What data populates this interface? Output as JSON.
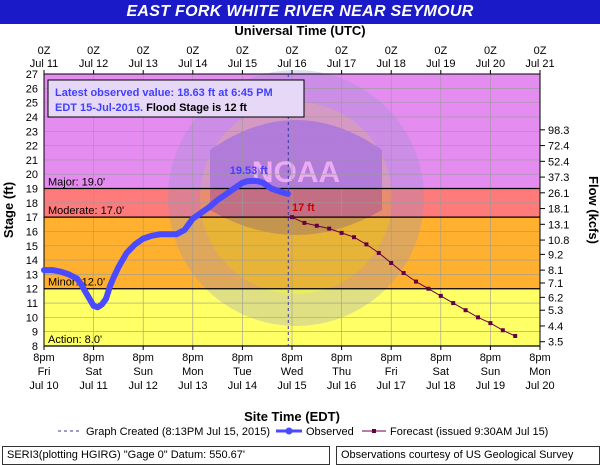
{
  "title": "EAST FORK WHITE RIVER NEAR SEYMOUR",
  "colors": {
    "title_bg": "#1a1ac8",
    "zone_major": "#e48cf0",
    "zone_moderate": "#ff7a7a",
    "zone_minor": "#ffb02e",
    "zone_action": "#ffff66",
    "zone_normal": "#ffffff",
    "observed": "#4a4aff",
    "forecast": "#660044",
    "annotation": "#4040ff"
  },
  "chart_data": {
    "type": "line",
    "title": "EAST FORK WHITE RIVER NEAR SEYMOUR",
    "top_axis_label": "Universal Time (UTC)",
    "xlabel": "Site Time (EDT)",
    "ylabel": "Stage (ft)",
    "y2label": "Flow (kcfs)",
    "ylim": [
      8,
      27
    ],
    "xlim": [
      0,
      240
    ],
    "x_unit": "hours after 8pm EDT Fri Jul 10, 2015",
    "yticks": [
      8,
      9,
      10,
      11,
      12,
      13,
      14,
      15,
      16,
      17,
      18,
      19,
      20,
      21,
      22,
      23,
      24,
      25,
      26,
      27
    ],
    "bottom_ticks": [
      {
        "x": 0,
        "time": "8pm",
        "day": "Fri",
        "date": "Jul 10"
      },
      {
        "x": 24,
        "time": "8pm",
        "day": "Sat",
        "date": "Jul 11"
      },
      {
        "x": 48,
        "time": "8pm",
        "day": "Sun",
        "date": "Jul 12"
      },
      {
        "x": 72,
        "time": "8pm",
        "day": "Mon",
        "date": "Jul 13"
      },
      {
        "x": 96,
        "time": "8pm",
        "day": "Tue",
        "date": "Jul 14"
      },
      {
        "x": 120,
        "time": "8pm",
        "day": "Wed",
        "date": "Jul 15"
      },
      {
        "x": 144,
        "time": "8pm",
        "day": "Thu",
        "date": "Jul 16"
      },
      {
        "x": 168,
        "time": "8pm",
        "day": "Fri",
        "date": "Jul 17"
      },
      {
        "x": 192,
        "time": "8pm",
        "day": "Sat",
        "date": "Jul 18"
      },
      {
        "x": 216,
        "time": "8pm",
        "day": "Sun",
        "date": "Jul 19"
      },
      {
        "x": 240,
        "time": "8pm",
        "day": "Mon",
        "date": "Jul 20"
      }
    ],
    "top_ticks": [
      {
        "x": 0,
        "time": "0Z",
        "date": "Jul 11"
      },
      {
        "x": 24,
        "time": "0Z",
        "date": "Jul 12"
      },
      {
        "x": 48,
        "time": "0Z",
        "date": "Jul 13"
      },
      {
        "x": 72,
        "time": "0Z",
        "date": "Jul 14"
      },
      {
        "x": 96,
        "time": "0Z",
        "date": "Jul 15"
      },
      {
        "x": 120,
        "time": "0Z",
        "date": "Jul 16"
      },
      {
        "x": 144,
        "time": "0Z",
        "date": "Jul 17"
      },
      {
        "x": 168,
        "time": "0Z",
        "date": "Jul 18"
      },
      {
        "x": 192,
        "time": "0Z",
        "date": "Jul 19"
      },
      {
        "x": 216,
        "time": "0Z",
        "date": "Jul 20"
      },
      {
        "x": 240,
        "time": "0Z",
        "date": "Jul 21"
      }
    ],
    "flow_ticks": [
      {
        "stage": 8.3,
        "label": "3.5"
      },
      {
        "stage": 9.4,
        "label": "4.4"
      },
      {
        "stage": 10.5,
        "label": "5.3"
      },
      {
        "stage": 11.4,
        "label": "6.2"
      },
      {
        "stage": 12.4,
        "label": "7.1"
      },
      {
        "stage": 13.3,
        "label": "8.1"
      },
      {
        "stage": 14.4,
        "label": "9.2"
      },
      {
        "stage": 15.4,
        "label": "10.8"
      },
      {
        "stage": 16.5,
        "label": "13.1"
      },
      {
        "stage": 17.6,
        "label": "18.1"
      },
      {
        "stage": 18.7,
        "label": "26.1"
      },
      {
        "stage": 19.8,
        "label": "37.3"
      },
      {
        "stage": 20.9,
        "label": "52.4"
      },
      {
        "stage": 22.0,
        "label": "72.4"
      },
      {
        "stage": 23.1,
        "label": "98.3"
      }
    ],
    "flood_categories": [
      {
        "name": "Major",
        "label": "Major: 19.0'",
        "stage": 19.0
      },
      {
        "name": "Moderate",
        "label": "Moderate: 17.0'",
        "stage": 17.0
      },
      {
        "name": "Minor",
        "label": "Minor: 12.0'",
        "stage": 12.0
      },
      {
        "name": "Action",
        "label": "Action: 8.0'",
        "stage": 8.0
      }
    ],
    "info_box": {
      "latest_observed": "Latest observed value: 18.63 ft at 6:45 PM",
      "edt_date": "EDT 15-Jul-2015.",
      "flood_stage": "Flood Stage is 12 ft"
    },
    "crest_label": "19.53 ft",
    "forecast_start_label": "17 ft",
    "graph_created_x": 118.2,
    "series": [
      {
        "name": "Observed",
        "x": [
          0,
          4,
          8,
          12,
          16,
          18,
          20,
          22,
          24,
          26,
          28,
          30,
          32,
          34,
          36,
          38,
          40,
          44,
          48,
          52,
          56,
          60,
          64,
          68,
          70,
          72,
          76,
          80,
          84,
          88,
          92,
          96,
          98,
          100,
          102,
          104,
          106,
          108,
          110,
          112,
          114,
          116,
          118
        ],
        "y": [
          13.3,
          13.3,
          13.2,
          13.0,
          12.7,
          12.3,
          11.8,
          11.3,
          10.8,
          10.7,
          10.9,
          11.3,
          12.2,
          12.9,
          13.5,
          14.0,
          14.5,
          15.1,
          15.5,
          15.7,
          15.8,
          15.8,
          15.8,
          16.1,
          16.5,
          16.9,
          17.3,
          17.7,
          18.2,
          18.6,
          19.0,
          19.4,
          19.5,
          19.53,
          19.53,
          19.5,
          19.4,
          19.2,
          19.0,
          18.9,
          18.8,
          18.7,
          18.63
        ]
      },
      {
        "name": "Forecast (issued 9:30AM Jul 15)",
        "x": [
          120,
          126,
          132,
          138,
          144,
          150,
          156,
          162,
          168,
          174,
          180,
          186,
          192,
          198,
          204,
          210,
          216,
          222,
          228
        ],
        "y": [
          17.0,
          16.6,
          16.4,
          16.2,
          15.9,
          15.6,
          15.1,
          14.5,
          13.8,
          13.1,
          12.5,
          12.0,
          11.5,
          11.0,
          10.5,
          10.0,
          9.6,
          9.1,
          8.7
        ]
      }
    ],
    "legend": {
      "graph_created": "Graph Created (8:13PM Jul 15, 2015)",
      "observed": "Observed",
      "forecast": "Forecast (issued 9:30AM Jul 15)"
    },
    "watermark": "U.S. DEPARTMENT OF COMMERCE · NATIONAL OCEANIC AND ATMOSPHERIC ADMINISTRATION · NOAA"
  },
  "footer": {
    "left": "SERI3(plotting HGIRG) \"Gage 0\" Datum:  550.67'",
    "right": "Observations courtesy of US Geological Survey"
  }
}
